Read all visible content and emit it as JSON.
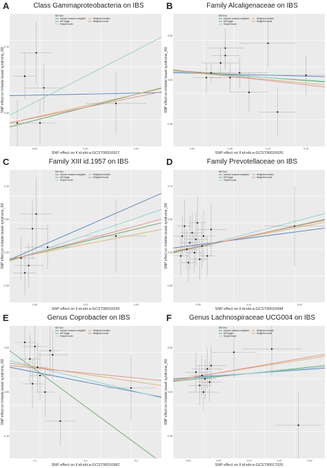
{
  "legend": {
    "title": "MR Test",
    "methods": [
      {
        "label": "Inverse variance weighted",
        "color": "#4f7fbf"
      },
      {
        "label": "MR Egger",
        "color": "#5fa85f"
      },
      {
        "label": "Simple mode",
        "color": "#8fcfcf"
      },
      {
        "label": "Weighted median",
        "color": "#d9b26a"
      },
      {
        "label": "Weighted mode",
        "color": "#e08a8a"
      }
    ]
  },
  "ylabel": "SNP effect on Irritable bowel syndrome_R8",
  "chart_data": [
    {
      "letter": "A",
      "title": "Class Gammaproteobacteria on IBS",
      "type": "scatter",
      "xlabel": "SNP effect on  ll id:ebi-a-GCST90016917",
      "xlim": [
        0.0,
        0.2
      ],
      "ylim": [
        -0.05,
        0.12
      ],
      "xticks": [
        "0.00",
        "0.10",
        "0.20"
      ],
      "yticks": [
        "0.05",
        "0.10"
      ],
      "points": [
        {
          "x": 0.01,
          "y": -0.02,
          "xe": 0.015,
          "ye": 0.03
        },
        {
          "x": 0.02,
          "y": 0.04,
          "xe": 0.015,
          "ye": 0.03
        },
        {
          "x": 0.035,
          "y": 0.07,
          "xe": 0.02,
          "ye": 0.04
        },
        {
          "x": 0.04,
          "y": -0.02,
          "xe": 0.02,
          "ye": 0.03
        },
        {
          "x": 0.045,
          "y": 0.025,
          "xe": 0.025,
          "ye": 0.03
        },
        {
          "x": 0.14,
          "y": 0.005,
          "xe": 0.04,
          "ye": 0.04
        }
      ],
      "lines": [
        {
          "method": "Inverse variance weighted",
          "slope": 0.02,
          "intercept": 0.015
        },
        {
          "method": "MR Egger",
          "slope": 0.25,
          "intercept": -0.025
        },
        {
          "method": "Simple mode",
          "slope": 0.5,
          "intercept": -0.01
        },
        {
          "method": "Weighted median",
          "slope": 0.22,
          "intercept": -0.02
        },
        {
          "method": "Weighted mode",
          "slope": 0.2,
          "intercept": -0.02
        }
      ]
    },
    {
      "letter": "B",
      "title": "Family Alcaligenaceae on IBS",
      "type": "scatter",
      "xlabel": "SNP effect on  ll id:ebi-a-GCST90016926",
      "xlim": [
        0.0,
        0.16
      ],
      "ylim": [
        -0.15,
        0.12
      ],
      "xticks": [
        "0.00",
        "0.05",
        "0.10",
        "0.15"
      ],
      "yticks": [
        "-0.05",
        "0.00",
        "0.05"
      ],
      "points": [
        {
          "x": 0.035,
          "y": -0.01,
          "xe": 0.015,
          "ye": 0.03
        },
        {
          "x": 0.04,
          "y": 0.0,
          "xe": 0.02,
          "ye": 0.02
        },
        {
          "x": 0.05,
          "y": 0.02,
          "xe": 0.02,
          "ye": 0.03
        },
        {
          "x": 0.055,
          "y": 0.05,
          "xe": 0.02,
          "ye": 0.04
        },
        {
          "x": 0.055,
          "y": 0.035,
          "xe": 0.015,
          "ye": 0.03
        },
        {
          "x": 0.06,
          "y": -0.01,
          "xe": 0.02,
          "ye": 0.03
        },
        {
          "x": 0.07,
          "y": 0.0,
          "xe": 0.03,
          "ye": 0.03
        },
        {
          "x": 0.08,
          "y": -0.04,
          "xe": 0.02,
          "ye": 0.04
        },
        {
          "x": 0.1,
          "y": 0.06,
          "xe": 0.03,
          "ye": 0.05
        },
        {
          "x": 0.11,
          "y": -0.08,
          "xe": 0.02,
          "ye": 0.05
        },
        {
          "x": 0.14,
          "y": -0.005,
          "xe": 0.03,
          "ye": 0.04
        }
      ],
      "lines": [
        {
          "method": "Inverse variance weighted",
          "slope": -0.05,
          "intercept": 0.0
        },
        {
          "method": "MR Egger",
          "slope": -0.15,
          "intercept": 0.005
        },
        {
          "method": "Simple mode",
          "slope": -0.12,
          "intercept": 0.002
        },
        {
          "method": "Weighted median",
          "slope": -0.18,
          "intercept": 0.004
        },
        {
          "method": "Weighted mode",
          "slope": -0.22,
          "intercept": 0.006
        }
      ]
    },
    {
      "letter": "C",
      "title": "Family XIII id.1957 on IBS",
      "type": "scatter",
      "xlabel": "SNP effect on  ll id:ebi-a-GCST90016939",
      "xlim": [
        0.0,
        0.2
      ],
      "ylim": [
        -0.06,
        0.12
      ],
      "xticks": [
        "0.00",
        "0.10",
        "0.20"
      ],
      "yticks": [
        "-0.05",
        "0.00",
        "0.05",
        "0.10"
      ],
      "points": [
        {
          "x": 0.015,
          "y": 0.0,
          "xe": 0.02,
          "ye": 0.03
        },
        {
          "x": 0.02,
          "y": -0.02,
          "xe": 0.015,
          "ye": 0.03
        },
        {
          "x": 0.025,
          "y": -0.01,
          "xe": 0.02,
          "ye": 0.03
        },
        {
          "x": 0.03,
          "y": 0.04,
          "xe": 0.02,
          "ye": 0.04
        },
        {
          "x": 0.035,
          "y": 0.06,
          "xe": 0.02,
          "ye": 0.05
        },
        {
          "x": 0.05,
          "y": 0.015,
          "xe": 0.03,
          "ye": 0.03
        },
        {
          "x": 0.14,
          "y": 0.03,
          "xe": 0.04,
          "ye": 0.05
        }
      ],
      "lines": [
        {
          "method": "Inverse variance weighted",
          "slope": 0.45,
          "intercept": -0.002
        },
        {
          "method": "MR Egger",
          "slope": 0.25,
          "intercept": -0.002
        },
        {
          "method": "Simple mode",
          "slope": 0.35,
          "intercept": -0.004
        },
        {
          "method": "Weighted median",
          "slope": 0.2,
          "intercept": -0.001
        },
        {
          "method": "Weighted mode",
          "slope": 0.28,
          "intercept": -0.003
        }
      ]
    },
    {
      "letter": "D",
      "title": "Family Prevotellaceae on IBS",
      "type": "scatter",
      "xlabel": "SNP effect on  ll id:ebi-a-GCST90016948",
      "xlim": [
        0.0,
        0.2
      ],
      "ylim": [
        -0.08,
        0.12
      ],
      "xticks": [
        "0.00",
        "0.10",
        "0.20"
      ],
      "yticks": [
        "-0.05",
        "0.00",
        "0.05",
        "0.10"
      ],
      "points": [
        {
          "x": 0.01,
          "y": -0.01,
          "xe": 0.01,
          "ye": 0.03
        },
        {
          "x": 0.012,
          "y": 0.02,
          "xe": 0.012,
          "ye": 0.03
        },
        {
          "x": 0.015,
          "y": 0.035,
          "xe": 0.01,
          "ye": 0.04
        },
        {
          "x": 0.018,
          "y": 0.0,
          "xe": 0.015,
          "ye": 0.03
        },
        {
          "x": 0.02,
          "y": -0.02,
          "xe": 0.01,
          "ye": 0.03
        },
        {
          "x": 0.022,
          "y": 0.01,
          "xe": 0.012,
          "ye": 0.04
        },
        {
          "x": 0.025,
          "y": 0.025,
          "xe": 0.015,
          "ye": 0.03
        },
        {
          "x": 0.028,
          "y": -0.005,
          "xe": 0.01,
          "ye": 0.03
        },
        {
          "x": 0.03,
          "y": 0.015,
          "xe": 0.015,
          "ye": 0.04
        },
        {
          "x": 0.032,
          "y": 0.04,
          "xe": 0.012,
          "ye": 0.04
        },
        {
          "x": 0.035,
          "y": -0.015,
          "xe": 0.012,
          "ye": 0.03
        },
        {
          "x": 0.038,
          "y": 0.005,
          "xe": 0.015,
          "ye": 0.035
        },
        {
          "x": 0.04,
          "y": 0.02,
          "xe": 0.015,
          "ye": 0.04
        },
        {
          "x": 0.045,
          "y": -0.01,
          "xe": 0.01,
          "ye": 0.03
        },
        {
          "x": 0.05,
          "y": 0.03,
          "xe": 0.02,
          "ye": 0.04
        },
        {
          "x": 0.16,
          "y": 0.035,
          "xe": 0.04,
          "ye": 0.06
        }
      ],
      "lines": [
        {
          "method": "Inverse variance weighted",
          "slope": 0.15,
          "intercept": 0.002
        },
        {
          "method": "MR Egger",
          "slope": 0.25,
          "intercept": -0.005
        },
        {
          "method": "Simple mode",
          "slope": 0.3,
          "intercept": -0.006
        },
        {
          "method": "Weighted median",
          "slope": 0.22,
          "intercept": -0.003
        },
        {
          "method": "Weighted mode",
          "slope": 0.24,
          "intercept": -0.004
        }
      ]
    },
    {
      "letter": "E",
      "title": "Genus Coprobacter on IBS",
      "type": "scatter",
      "xlabel": "SNP effect on  ll id:ebi-a-GCST90016982",
      "xlim": [
        0.0,
        0.3
      ],
      "ylim": [
        -0.1,
        0.06
      ],
      "xticks": [
        "0.1",
        "0.2",
        "0.3"
      ],
      "yticks": [
        "-0.10",
        "-0.05",
        "0.00"
      ],
      "points": [
        {
          "x": 0.03,
          "y": 0.04,
          "xe": 0.02,
          "ye": 0.03
        },
        {
          "x": 0.04,
          "y": 0.02,
          "xe": 0.02,
          "ye": 0.03
        },
        {
          "x": 0.045,
          "y": -0.01,
          "xe": 0.02,
          "ye": 0.03
        },
        {
          "x": 0.05,
          "y": 0.035,
          "xe": 0.025,
          "ye": 0.03
        },
        {
          "x": 0.055,
          "y": 0.01,
          "xe": 0.02,
          "ye": 0.03
        },
        {
          "x": 0.06,
          "y": 0.0,
          "xe": 0.02,
          "ye": 0.03
        },
        {
          "x": 0.07,
          "y": -0.02,
          "xe": 0.02,
          "ye": 0.03
        },
        {
          "x": 0.08,
          "y": 0.03,
          "xe": 0.02,
          "ye": 0.03
        },
        {
          "x": 0.085,
          "y": 0.025,
          "xe": 0.03,
          "ye": 0.03
        },
        {
          "x": 0.1,
          "y": -0.055,
          "xe": 0.03,
          "ye": 0.03
        },
        {
          "x": 0.24,
          "y": -0.015,
          "xe": 0.05,
          "ye": 0.04
        }
      ],
      "lines": [
        {
          "method": "Inverse variance weighted",
          "slope": -0.12,
          "intercept": 0.01
        },
        {
          "method": "MR Egger",
          "slope": -0.45,
          "intercept": 0.03
        },
        {
          "method": "Simple mode",
          "slope": -0.15,
          "intercept": 0.018
        },
        {
          "method": "Weighted median",
          "slope": -0.09,
          "intercept": 0.015
        },
        {
          "method": "Weighted mode",
          "slope": -0.06,
          "intercept": 0.012
        }
      ]
    },
    {
      "letter": "F",
      "title": "Genus Lachnospiraceae UCG004 on IBS",
      "type": "scatter",
      "xlabel": "SNP effect on  ll id:ebi-a-GCST90017026",
      "xlim": [
        0.0,
        0.2
      ],
      "ylim": [
        -0.12,
        0.08
      ],
      "xticks": [
        "0.00",
        "0.05",
        "0.10",
        "0.15",
        "0.20"
      ],
      "yticks": [
        "-0.05",
        "0.00",
        "0.05"
      ],
      "points": [
        {
          "x": 0.03,
          "y": 0.01,
          "xe": 0.015,
          "ye": 0.03
        },
        {
          "x": 0.035,
          "y": -0.01,
          "xe": 0.015,
          "ye": 0.03
        },
        {
          "x": 0.038,
          "y": 0.005,
          "xe": 0.015,
          "ye": 0.03
        },
        {
          "x": 0.04,
          "y": -0.02,
          "xe": 0.02,
          "ye": 0.03
        },
        {
          "x": 0.042,
          "y": 0.0,
          "xe": 0.015,
          "ye": 0.03
        },
        {
          "x": 0.045,
          "y": 0.015,
          "xe": 0.02,
          "ye": 0.03
        },
        {
          "x": 0.048,
          "y": -0.005,
          "xe": 0.015,
          "ye": 0.03
        },
        {
          "x": 0.05,
          "y": 0.02,
          "xe": 0.02,
          "ye": 0.03
        },
        {
          "x": 0.08,
          "y": 0.04,
          "xe": 0.03,
          "ye": 0.04
        },
        {
          "x": 0.13,
          "y": 0.045,
          "xe": 0.04,
          "ye": 0.04
        },
        {
          "x": 0.165,
          "y": -0.07,
          "xe": 0.03,
          "ye": 0.05
        }
      ],
      "lines": [
        {
          "method": "Inverse variance weighted",
          "slope": 0.08,
          "intercept": 0.0
        },
        {
          "method": "MR Egger",
          "slope": 0.12,
          "intercept": -0.004
        },
        {
          "method": "Simple mode",
          "slope": 0.1,
          "intercept": -0.002
        },
        {
          "method": "Weighted median",
          "slope": 0.18,
          "intercept": -0.002
        },
        {
          "method": "Weighted mode",
          "slope": 0.2,
          "intercept": -0.003
        }
      ]
    }
  ]
}
